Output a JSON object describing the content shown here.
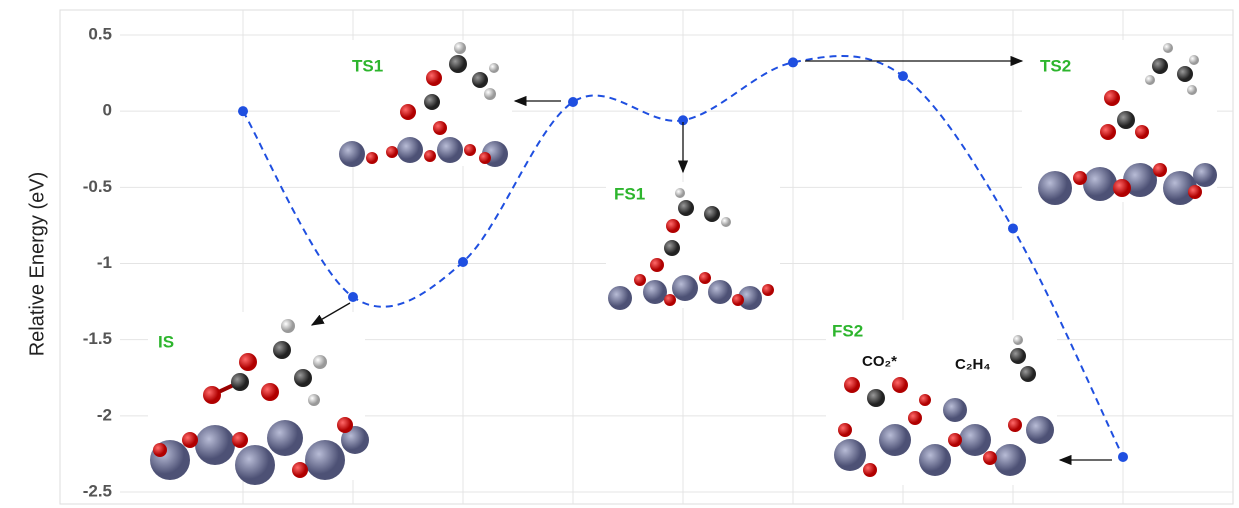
{
  "chart_data": {
    "type": "line",
    "y_label": "Relative Energy (eV)",
    "categories": [
      null,
      null,
      null,
      null,
      null,
      null,
      null,
      null,
      null
    ],
    "series": [
      {
        "name": null,
        "color": "#1f4fe0",
        "values": [
          0,
          -1.22,
          -0.99,
          0.06,
          -0.06,
          0.32,
          0.23,
          -0.77,
          -2.27
        ]
      }
    ],
    "ylim": [
      -2.5,
      0.5
    ],
    "yticks": [
      0.5,
      0,
      -0.5,
      -1,
      -1.5,
      -2,
      -2.5
    ],
    "grid": true,
    "annotations": [
      "IS",
      "TS1",
      "FS1",
      "TS2",
      "FS2",
      "CO₂*",
      "C₂H₄"
    ]
  }
}
